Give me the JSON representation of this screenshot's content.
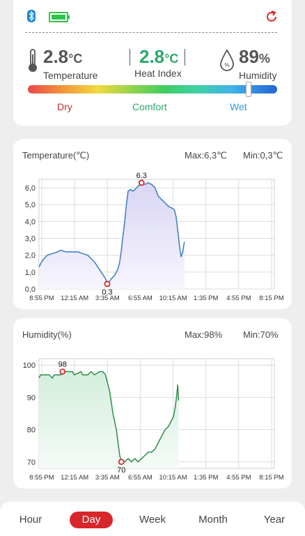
{
  "status": {
    "bluetooth_icon": "bluetooth-icon",
    "battery_icon": "battery-icon",
    "refresh_icon": "refresh-icon"
  },
  "metrics": {
    "temperature": {
      "value": "2.8",
      "unit": "°C",
      "label": "Temperature",
      "icon": "thermometer-icon"
    },
    "heat_index": {
      "value": "2.8",
      "unit": "°C",
      "label": "Heat Index"
    },
    "humidity": {
      "value": "89",
      "unit": "%",
      "label": "Humidity",
      "icon": "humidity-drop-icon"
    }
  },
  "comfort_bar": {
    "labels": {
      "dry": "Dry",
      "comfort": "Comfort",
      "wet": "Wet"
    },
    "position": 0.89
  },
  "colors": {
    "accent_red": "#d8262b",
    "comfort_green": "#2aa86a",
    "wet_blue": "#2b9bd6",
    "dry_red": "#c62f2f",
    "temp_line": "#3a7bbf",
    "hum_line": "#2e8b4a"
  },
  "tabs": [
    {
      "label": "Hour",
      "active": false
    },
    {
      "label": "Day",
      "active": true
    },
    {
      "label": "Week",
      "active": false
    },
    {
      "label": "Month",
      "active": false
    },
    {
      "label": "Year",
      "active": false
    }
  ],
  "chart_data": [
    {
      "type": "area",
      "title": "Temperature(℃)",
      "max_text": "Max:6,3℃",
      "min_text": "Min:0,3℃",
      "ylim": [
        0,
        6.5
      ],
      "yticks": [
        0,
        1,
        2,
        3,
        4,
        5,
        6
      ],
      "ytick_labels": [
        "0,0",
        "1,0",
        "2,0",
        "3,0",
        "4,0",
        "5,0",
        "6,0"
      ],
      "xtick_labels": [
        "8:55 PM",
        "12:15 AM",
        "3:35 AM",
        "6:55 AM",
        "10:15 AM",
        "1:35 PM",
        "4:55 PM",
        "8:15 PM"
      ],
      "x_range": [
        0,
        1400
      ],
      "series": [
        {
          "values": [
            [
              0,
              1.3
            ],
            [
              15,
              1.6
            ],
            [
              30,
              1.8
            ],
            [
              50,
              2.0
            ],
            [
              80,
              2.1
            ],
            [
              110,
              2.2
            ],
            [
              130,
              2.3
            ],
            [
              160,
              2.2
            ],
            [
              200,
              2.2
            ],
            [
              230,
              2.2
            ],
            [
              260,
              2.1
            ],
            [
              290,
              2.0
            ],
            [
              310,
              1.8
            ],
            [
              330,
              1.6
            ],
            [
              350,
              1.3
            ],
            [
              370,
              1.0
            ],
            [
              390,
              0.7
            ],
            [
              400,
              0.5
            ],
            [
              406,
              0.3
            ],
            [
              416,
              0.4
            ],
            [
              430,
              0.6
            ],
            [
              450,
              0.8
            ],
            [
              470,
              1.2
            ],
            [
              480,
              1.6
            ],
            [
              490,
              2.3
            ],
            [
              500,
              3.2
            ],
            [
              510,
              4.0
            ],
            [
              520,
              5.0
            ],
            [
              530,
              5.8
            ],
            [
              545,
              5.9
            ],
            [
              560,
              5.8
            ],
            [
              580,
              6.0
            ],
            [
              600,
              6.2
            ],
            [
              610,
              6.3
            ],
            [
              630,
              6.2
            ],
            [
              650,
              6.3
            ],
            [
              670,
              6.2
            ],
            [
              690,
              6.0
            ],
            [
              710,
              5.5
            ],
            [
              740,
              5.2
            ],
            [
              770,
              4.9
            ],
            [
              790,
              4.8
            ],
            [
              805,
              4.7
            ],
            [
              815,
              4.3
            ],
            [
              825,
              3.5
            ],
            [
              835,
              2.6
            ],
            [
              845,
              1.9
            ],
            [
              855,
              2.2
            ],
            [
              865,
              2.8
            ]
          ]
        }
      ],
      "annotations": [
        {
          "x": 406,
          "y": 0.3,
          "label": "0.3"
        },
        {
          "x": 610,
          "y": 6.3,
          "label": "6.3"
        }
      ]
    },
    {
      "type": "area",
      "title": "Humidity(%)",
      "max_text": "Max:98%",
      "min_text": "Min:70%",
      "ylim": [
        68,
        102
      ],
      "yticks": [
        70,
        80,
        90,
        100
      ],
      "ytick_labels": [
        "70",
        "80",
        "90",
        "100"
      ],
      "xtick_labels": [
        "8:55 PM",
        "12:15 AM",
        "3:35 AM",
        "6:55 AM",
        "10:15 AM",
        "1:35 PM",
        "4:55 PM",
        "8:15 PM"
      ],
      "x_range": [
        0,
        1400
      ],
      "series": [
        {
          "values": [
            [
              0,
              96
            ],
            [
              10,
              97
            ],
            [
              60,
              97
            ],
            [
              80,
              96
            ],
            [
              90,
              97
            ],
            [
              130,
              97
            ],
            [
              140,
              98
            ],
            [
              170,
              98
            ],
            [
              200,
              98
            ],
            [
              210,
              97
            ],
            [
              250,
              98
            ],
            [
              260,
              97
            ],
            [
              290,
              97
            ],
            [
              310,
              98
            ],
            [
              330,
              97
            ],
            [
              360,
              98
            ],
            [
              380,
              98
            ],
            [
              395,
              97
            ],
            [
              400,
              96
            ],
            [
              420,
              92
            ],
            [
              440,
              85
            ],
            [
              460,
              80
            ],
            [
              470,
              76
            ],
            [
              480,
              72
            ],
            [
              490,
              70
            ],
            [
              510,
              70
            ],
            [
              530,
              71
            ],
            [
              550,
              70
            ],
            [
              570,
              71
            ],
            [
              590,
              70
            ],
            [
              610,
              71
            ],
            [
              630,
              72
            ],
            [
              650,
              73
            ],
            [
              670,
              73
            ],
            [
              690,
              74
            ],
            [
              710,
              76
            ],
            [
              730,
              78
            ],
            [
              750,
              80
            ],
            [
              770,
              81
            ],
            [
              790,
              83
            ],
            [
              800,
              84
            ],
            [
              810,
              87
            ],
            [
              820,
              91
            ],
            [
              825,
              94
            ],
            [
              830,
              89
            ]
          ]
        }
      ],
      "annotations": [
        {
          "x": 140,
          "y": 98,
          "label": "98"
        },
        {
          "x": 490,
          "y": 70,
          "label": "70"
        }
      ]
    }
  ]
}
